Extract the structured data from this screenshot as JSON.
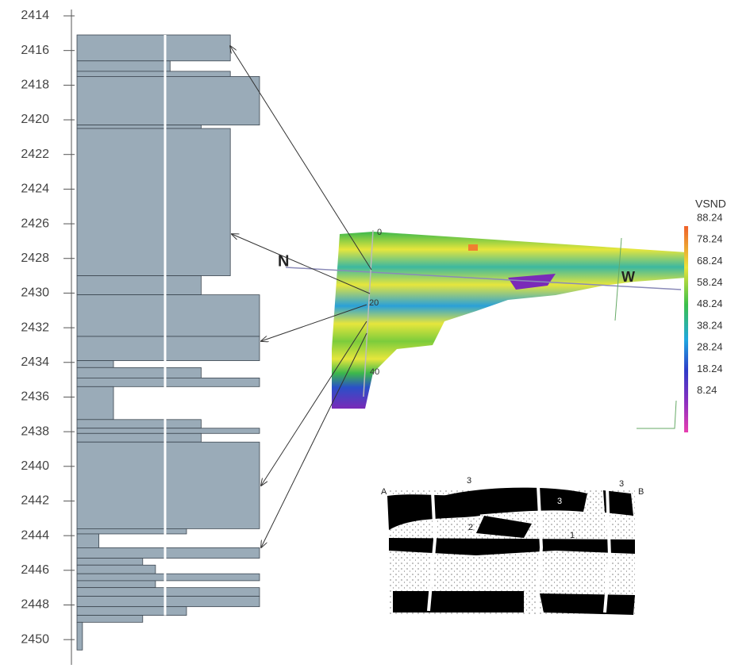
{
  "chart_data": {
    "type": "hbar-log",
    "color": "#9aabb8",
    "depth_top": [
      2415.1,
      2416.6,
      2417.2,
      2417.5,
      2420.3,
      2420.5,
      2429.0,
      2430.1,
      2432.5,
      2433.9,
      2434.3,
      2434.9,
      2435.4,
      2437.3,
      2437.8,
      2438.1,
      2438.6,
      2443.6,
      2443.9,
      2444.7,
      2445.3,
      2445.7,
      2446.2,
      2446.6,
      2447.0,
      2447.5,
      2448.1,
      2448.6,
      2449.0
    ],
    "depth_bottom": [
      2416.6,
      2417.2,
      2417.5,
      2420.3,
      2420.5,
      2429.0,
      2430.1,
      2432.5,
      2433.9,
      2434.3,
      2434.9,
      2435.4,
      2437.3,
      2437.8,
      2438.1,
      2438.6,
      2443.6,
      2443.9,
      2444.7,
      2445.3,
      2445.7,
      2446.2,
      2446.6,
      2447.0,
      2447.5,
      2448.1,
      2448.6,
      2449.0,
      2450.6
    ],
    "values": [
      84,
      51,
      84,
      100,
      68,
      84,
      68,
      100,
      100,
      20,
      68,
      100,
      20,
      68,
      100,
      68,
      100,
      60,
      12,
      100,
      36,
      43,
      100,
      43,
      100,
      100,
      60,
      36,
      3
    ],
    "xlim": [
      0,
      100
    ],
    "ylim": [
      2414,
      2451
    ],
    "yticks": [
      2414,
      2416,
      2418,
      2420,
      2422,
      2424,
      2426,
      2428,
      2430,
      2432,
      2434,
      2436,
      2438,
      2440,
      2442,
      2444,
      2446,
      2448,
      2450
    ]
  },
  "colorbar": {
    "title": "VSND",
    "ticks": [
      "88.24",
      "78.24",
      "68.24",
      "58.24",
      "48.24",
      "38.24",
      "28.24",
      "18.24",
      "8.24"
    ]
  },
  "volume": {
    "labels": [
      "N",
      "W"
    ],
    "depth_ticks": [
      "0",
      "20",
      "40"
    ]
  },
  "sketch": {
    "labels": [
      "A",
      "B",
      "3",
      "3",
      "3",
      "2",
      "1"
    ]
  }
}
